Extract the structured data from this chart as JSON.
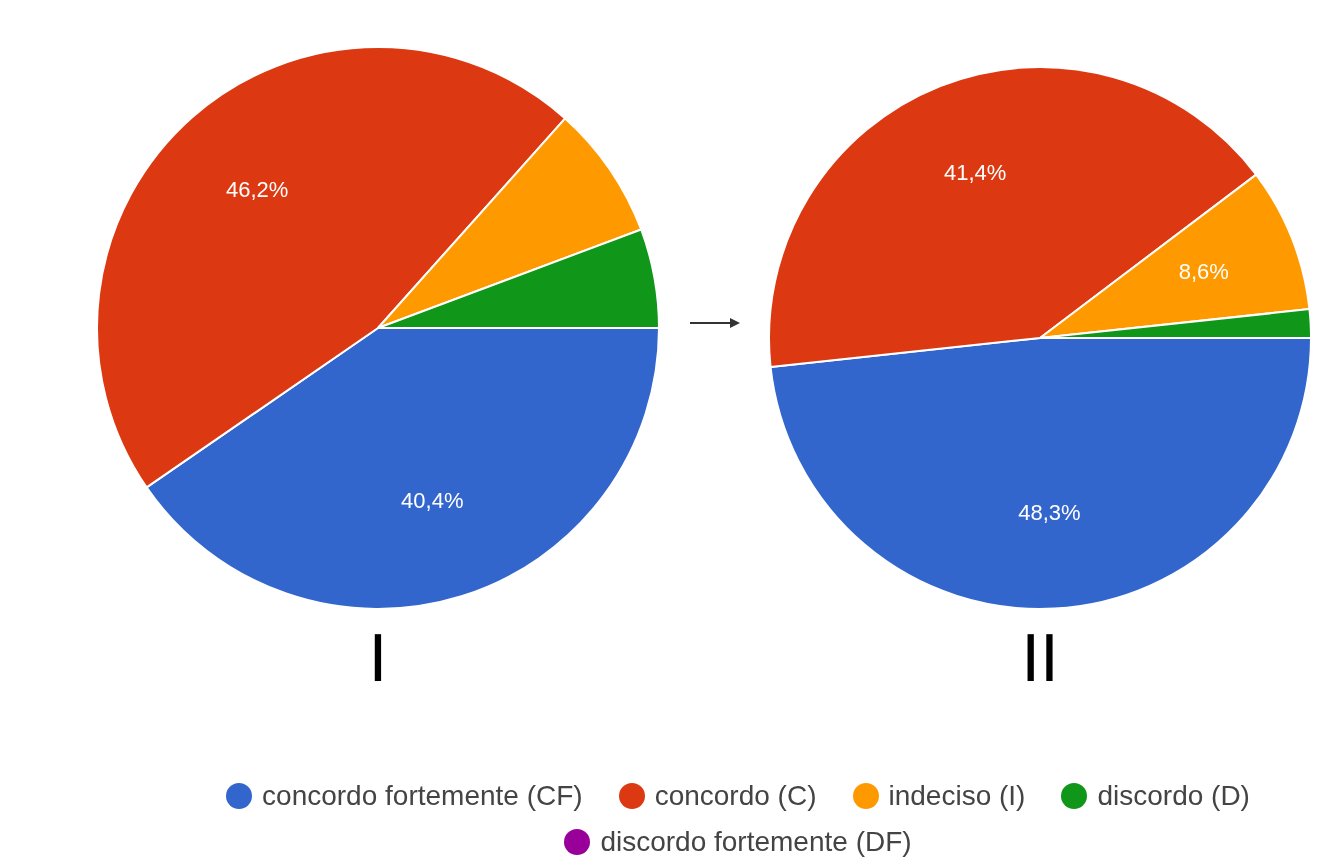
{
  "chart_data": [
    {
      "type": "pie",
      "title": "I",
      "categories": [
        "concordo fortemente (CF)",
        "concordo (C)",
        "indeciso (I)",
        "discordo (D)",
        "discordo fortemente (DF)"
      ],
      "values": [
        40.4,
        46.2,
        7.7,
        5.7,
        0
      ],
      "colors": [
        "#3366cc",
        "#dc3912",
        "#ff9900",
        "#109618",
        "#990099"
      ],
      "value_labels": [
        "40,4%",
        "46,2%",
        null,
        null,
        null
      ],
      "legend": "bottom"
    },
    {
      "type": "pie",
      "title": "II",
      "categories": [
        null,
        null,
        null,
        null,
        null
      ],
      "values": [
        48.3,
        41.4,
        8.6,
        1.7,
        0
      ],
      "colors": [
        "#3366cc",
        "#dc3912",
        "#ff9900",
        "#109618",
        "#990099"
      ],
      "value_labels": [
        "48,3%",
        "41,4%",
        "8,6%",
        null,
        null
      ]
    }
  ]
}
